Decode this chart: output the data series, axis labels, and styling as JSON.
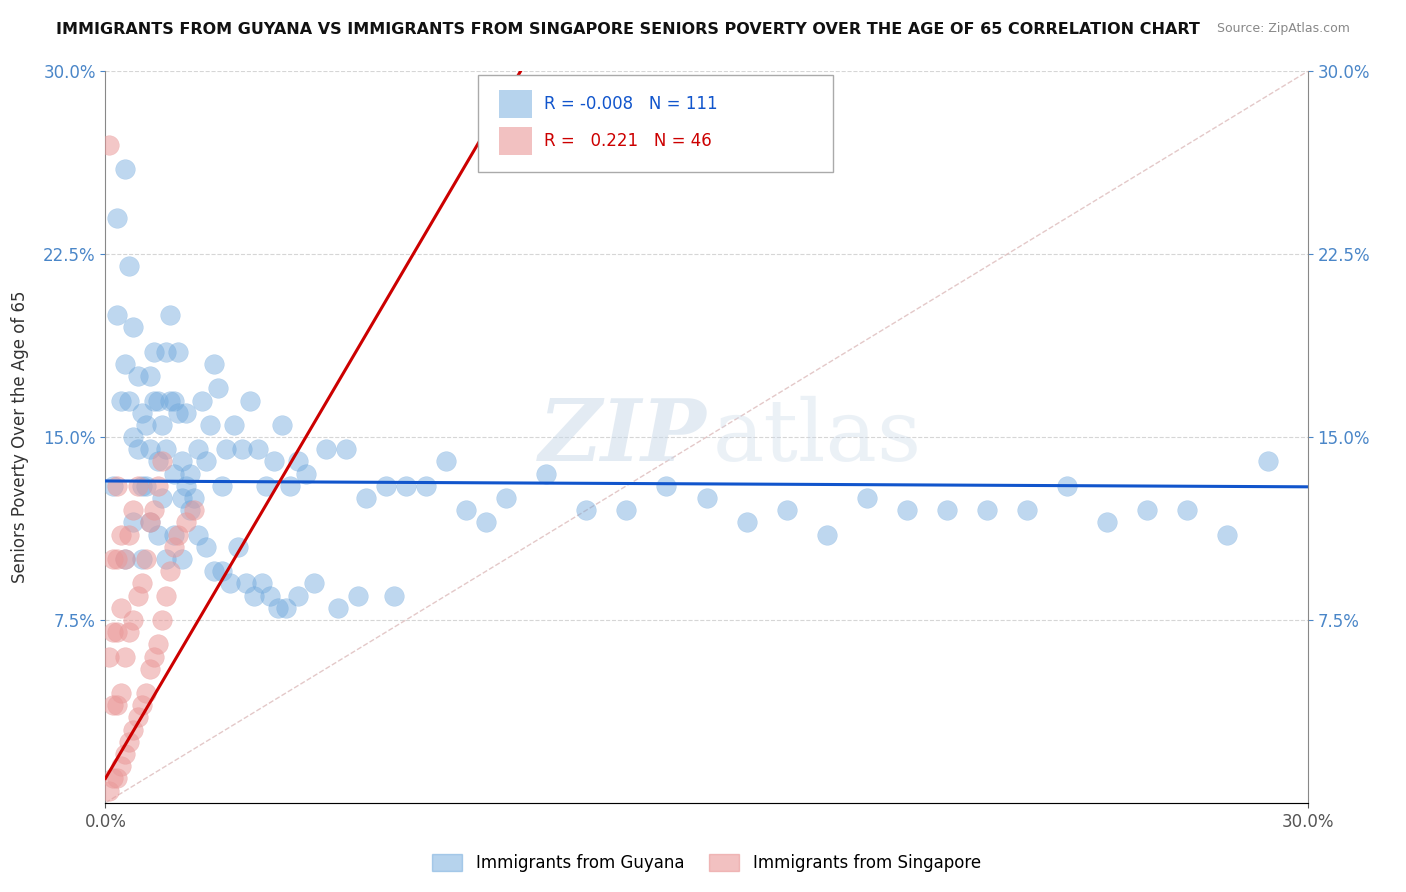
{
  "title": "IMMIGRANTS FROM GUYANA VS IMMIGRANTS FROM SINGAPORE SENIORS POVERTY OVER THE AGE OF 65 CORRELATION CHART",
  "source": "Source: ZipAtlas.com",
  "ylabel": "Seniors Poverty Over the Age of 65",
  "xlim": [
    0.0,
    0.3
  ],
  "ylim": [
    0.0,
    0.3
  ],
  "legend_r_blue": "-0.008",
  "legend_n_blue": "111",
  "legend_r_pink": "0.221",
  "legend_n_pink": "46",
  "blue_color": "#6fa8dc",
  "pink_color": "#ea9999",
  "blue_line_color": "#1155cc",
  "pink_line_color": "#cc0000",
  "watermark_zip": "ZIP",
  "watermark_atlas": "atlas",
  "background_color": "#ffffff",
  "grid_color": "#cccccc",
  "blue_line_slope": -0.008,
  "blue_line_intercept": 0.132,
  "pink_line_slope": 2.8,
  "pink_line_intercept": 0.01,
  "guyana_x": [
    0.002,
    0.003,
    0.003,
    0.004,
    0.005,
    0.005,
    0.006,
    0.006,
    0.007,
    0.007,
    0.008,
    0.008,
    0.009,
    0.009,
    0.01,
    0.01,
    0.011,
    0.011,
    0.012,
    0.012,
    0.013,
    0.013,
    0.014,
    0.014,
    0.015,
    0.015,
    0.016,
    0.016,
    0.017,
    0.017,
    0.018,
    0.018,
    0.019,
    0.019,
    0.02,
    0.02,
    0.021,
    0.022,
    0.023,
    0.024,
    0.025,
    0.026,
    0.027,
    0.028,
    0.029,
    0.03,
    0.032,
    0.034,
    0.036,
    0.038,
    0.04,
    0.042,
    0.044,
    0.046,
    0.048,
    0.05,
    0.055,
    0.06,
    0.065,
    0.07,
    0.075,
    0.08,
    0.085,
    0.09,
    0.095,
    0.1,
    0.11,
    0.12,
    0.13,
    0.14,
    0.15,
    0.16,
    0.17,
    0.18,
    0.19,
    0.2,
    0.21,
    0.22,
    0.23,
    0.24,
    0.25,
    0.26,
    0.27,
    0.28,
    0.29,
    0.005,
    0.007,
    0.009,
    0.011,
    0.013,
    0.015,
    0.017,
    0.019,
    0.021,
    0.023,
    0.025,
    0.027,
    0.029,
    0.031,
    0.033,
    0.035,
    0.037,
    0.039,
    0.041,
    0.043,
    0.045,
    0.048,
    0.052,
    0.058,
    0.063,
    0.072
  ],
  "guyana_y": [
    0.13,
    0.2,
    0.24,
    0.165,
    0.26,
    0.18,
    0.22,
    0.165,
    0.15,
    0.195,
    0.145,
    0.175,
    0.13,
    0.16,
    0.155,
    0.13,
    0.145,
    0.175,
    0.185,
    0.165,
    0.14,
    0.165,
    0.125,
    0.155,
    0.145,
    0.185,
    0.165,
    0.2,
    0.165,
    0.135,
    0.16,
    0.185,
    0.14,
    0.125,
    0.13,
    0.16,
    0.135,
    0.125,
    0.145,
    0.165,
    0.14,
    0.155,
    0.18,
    0.17,
    0.13,
    0.145,
    0.155,
    0.145,
    0.165,
    0.145,
    0.13,
    0.14,
    0.155,
    0.13,
    0.14,
    0.135,
    0.145,
    0.145,
    0.125,
    0.13,
    0.13,
    0.13,
    0.14,
    0.12,
    0.115,
    0.125,
    0.135,
    0.12,
    0.12,
    0.13,
    0.125,
    0.115,
    0.12,
    0.11,
    0.125,
    0.12,
    0.12,
    0.12,
    0.12,
    0.13,
    0.115,
    0.12,
    0.12,
    0.11,
    0.14,
    0.1,
    0.115,
    0.1,
    0.115,
    0.11,
    0.1,
    0.11,
    0.1,
    0.12,
    0.11,
    0.105,
    0.095,
    0.095,
    0.09,
    0.105,
    0.09,
    0.085,
    0.09,
    0.085,
    0.08,
    0.08,
    0.085,
    0.09,
    0.08,
    0.085,
    0.085
  ],
  "singapore_x": [
    0.001,
    0.001,
    0.001,
    0.002,
    0.002,
    0.002,
    0.002,
    0.003,
    0.003,
    0.003,
    0.003,
    0.003,
    0.004,
    0.004,
    0.004,
    0.004,
    0.005,
    0.005,
    0.005,
    0.006,
    0.006,
    0.006,
    0.007,
    0.007,
    0.007,
    0.008,
    0.008,
    0.008,
    0.009,
    0.009,
    0.01,
    0.01,
    0.011,
    0.011,
    0.012,
    0.012,
    0.013,
    0.013,
    0.014,
    0.014,
    0.015,
    0.016,
    0.017,
    0.018,
    0.02,
    0.022
  ],
  "singapore_y": [
    0.005,
    0.06,
    0.27,
    0.01,
    0.04,
    0.07,
    0.1,
    0.01,
    0.04,
    0.07,
    0.1,
    0.13,
    0.015,
    0.045,
    0.08,
    0.11,
    0.02,
    0.06,
    0.1,
    0.025,
    0.07,
    0.11,
    0.03,
    0.075,
    0.12,
    0.035,
    0.085,
    0.13,
    0.04,
    0.09,
    0.045,
    0.1,
    0.055,
    0.115,
    0.06,
    0.12,
    0.065,
    0.13,
    0.075,
    0.14,
    0.085,
    0.095,
    0.105,
    0.11,
    0.115,
    0.12
  ]
}
